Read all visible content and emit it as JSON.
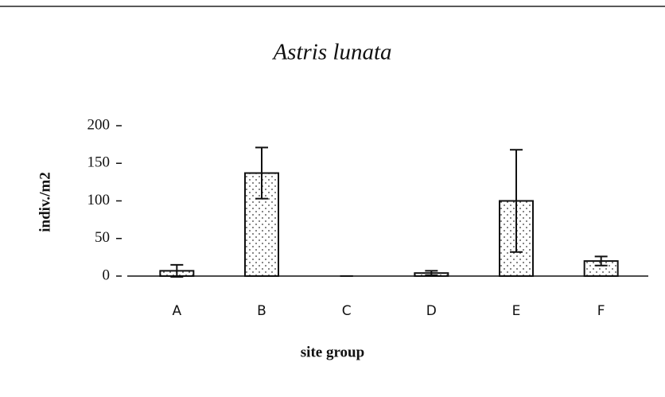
{
  "chart_data": {
    "type": "bar",
    "title": "Astris lunata",
    "x_label": "site group",
    "y_label": "indiv./m2",
    "categories": [
      "A",
      "B",
      "C",
      "D",
      "E",
      "F"
    ],
    "values": [
      7,
      137,
      0,
      4,
      100,
      20
    ],
    "errors": [
      8,
      34,
      0,
      3,
      68,
      6
    ],
    "color": "#ffffff",
    "ylim": [
      0,
      200
    ],
    "yticks": [
      0,
      50,
      100,
      150,
      200
    ],
    "grid": false
  }
}
